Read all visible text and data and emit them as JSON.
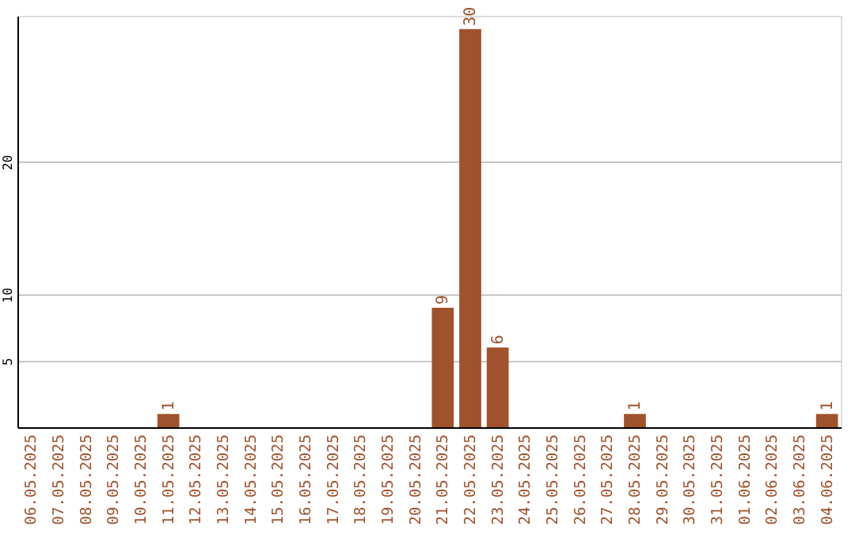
{
  "chart_data": {
    "type": "bar",
    "categories": [
      "06.05.2025",
      "07.05.2025",
      "08.05.2025",
      "09.05.2025",
      "10.05.2025",
      "11.05.2025",
      "12.05.2025",
      "13.05.2025",
      "14.05.2025",
      "15.05.2025",
      "16.05.2025",
      "17.05.2025",
      "18.05.2025",
      "19.05.2025",
      "20.05.2025",
      "21.05.2025",
      "22.05.2025",
      "23.05.2025",
      "24.05.2025",
      "25.05.2025",
      "26.05.2025",
      "27.05.2025",
      "28.05.2025",
      "29.05.2025",
      "30.05.2025",
      "31.05.2025",
      "01.06.2025",
      "02.06.2025",
      "03.06.2025",
      "04.06.2025"
    ],
    "values": [
      0,
      0,
      0,
      0,
      0,
      1,
      0,
      0,
      0,
      0,
      0,
      0,
      0,
      0,
      0,
      9,
      30,
      6,
      0,
      0,
      0,
      0,
      1,
      0,
      0,
      0,
      0,
      0,
      0,
      1
    ],
    "value_labels": [
      null,
      null,
      null,
      null,
      null,
      "1",
      null,
      null,
      null,
      null,
      null,
      null,
      null,
      null,
      null,
      "9",
      "30",
      "6",
      null,
      null,
      null,
      null,
      "1",
      null,
      null,
      null,
      null,
      null,
      null,
      "1"
    ],
    "color": "#a0522d",
    "ylim": [
      0,
      31
    ],
    "yticks": [
      5,
      10,
      20
    ],
    "grid": "y"
  }
}
